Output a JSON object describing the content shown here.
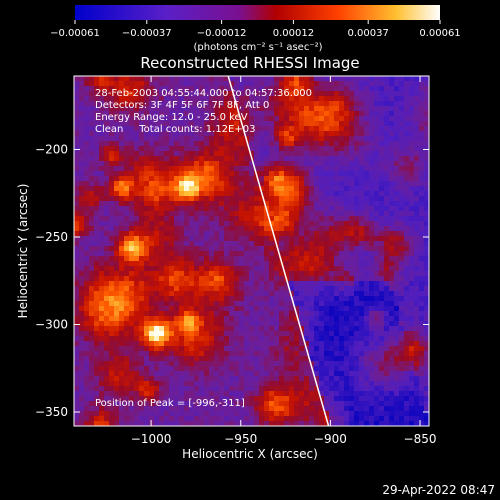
{
  "chart_data": {
    "type": "heatmap",
    "title": "Reconstructed RHESSI Image",
    "xlabel": "Heliocentric X (arcsec)",
    "ylabel": "Heliocentric Y (arcsec)",
    "xlim": [
      -1043,
      -845
    ],
    "ylim": [
      -358,
      -158
    ],
    "x_ticks": [
      -1000,
      -950,
      -900,
      -850
    ],
    "y_ticks": [
      -350,
      -300,
      -250,
      -200
    ],
    "x_tick_labels": [
      "−1000",
      "−950",
      "−900",
      "−850"
    ],
    "y_tick_labels": [
      "−350",
      "−300",
      "−250",
      "−200"
    ],
    "colorbar": {
      "range": [
        -0.00061,
        0.00061
      ],
      "ticks": [
        -0.00061,
        -0.00037,
        -0.00012,
        0.00012,
        0.00037,
        0.00061
      ],
      "tick_labels": [
        "−0.00061",
        "−0.00037",
        "−0.00012",
        "0.00012",
        "0.00037",
        "0.00061"
      ],
      "unit_label": "(photons cm⁻² s⁻¹ asec⁻²)",
      "colors": [
        "#0000cc",
        "#6020c0",
        "#b00000",
        "#ff5000",
        "#ffd040",
        "#ffffff"
      ]
    },
    "limb_line": [
      [
        -957,
        -158
      ],
      [
        -901,
        -358
      ]
    ],
    "annotations": {
      "time": "28-Feb-2003 04:55:44.000 to 04:57:36.000",
      "detectors": "Detectors: 3F 4F 5F 6F 7F 8F, Att 0",
      "energy": "Energy Range: 12.0 - 25.0 keV",
      "clean": "Clean     Total counts: 1.12E+03",
      "peak": "Position of Peak = [-996,-311]"
    },
    "grid": false
  },
  "timestamp": "29-Apr-2022 08:47"
}
